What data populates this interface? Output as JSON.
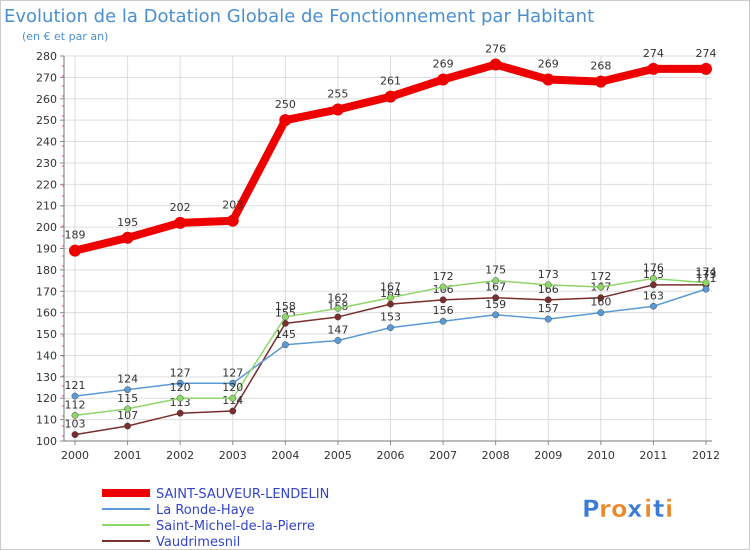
{
  "chart_data": {
    "type": "line",
    "title": "Evolution de la Dotation Globale de Fonctionnement par Habitant",
    "subtitle": "(en € et par an)",
    "xlabel": "",
    "ylabel": "",
    "x": [
      "2000",
      "2001",
      "2002",
      "2003",
      "2004",
      "2005",
      "2006",
      "2007",
      "2008",
      "2009",
      "2010",
      "2011",
      "2012"
    ],
    "ylim": [
      100,
      280
    ],
    "yticks": [
      100,
      110,
      120,
      130,
      140,
      150,
      160,
      170,
      180,
      190,
      200,
      210,
      220,
      230,
      240,
      250,
      260,
      270,
      280
    ],
    "grid": true,
    "legend": "bottom-left",
    "series": [
      {
        "name": "SAINT-SAUVEUR-LENDELIN",
        "color": "#ee0000",
        "values": [
          189,
          195,
          202,
          203,
          250,
          255,
          261,
          269,
          276,
          269,
          268,
          274,
          274
        ]
      },
      {
        "name": "La Ronde-Haye",
        "color": "#5b9bd5",
        "values": [
          121,
          124,
          127,
          127,
          145,
          147,
          153,
          156,
          159,
          157,
          160,
          163,
          171
        ]
      },
      {
        "name": "Saint-Michel-de-la-Pierre",
        "color": "#8fd66a",
        "values": [
          112,
          115,
          120,
          120,
          158,
          162,
          167,
          172,
          175,
          173,
          172,
          176,
          174
        ]
      },
      {
        "name": "Vaudrimesnil",
        "color": "#7a2e2e",
        "values": [
          103,
          107,
          113,
          114,
          155,
          158,
          164,
          166,
          167,
          166,
          167,
          173,
          173
        ]
      }
    ]
  },
  "brand": {
    "name": "Proxiti",
    "letters": [
      "P",
      "r",
      "o",
      "x",
      "i",
      "t",
      "i"
    ]
  },
  "colors": {
    "title": "#4a8fd0",
    "legend_text": "#3344cc",
    "brand_letters": [
      "#3a7bd5",
      "#e8892c",
      "#e8892c",
      "#3a7bd5",
      "#e8892c",
      "#3a7bd5",
      "#e8892c"
    ]
  }
}
